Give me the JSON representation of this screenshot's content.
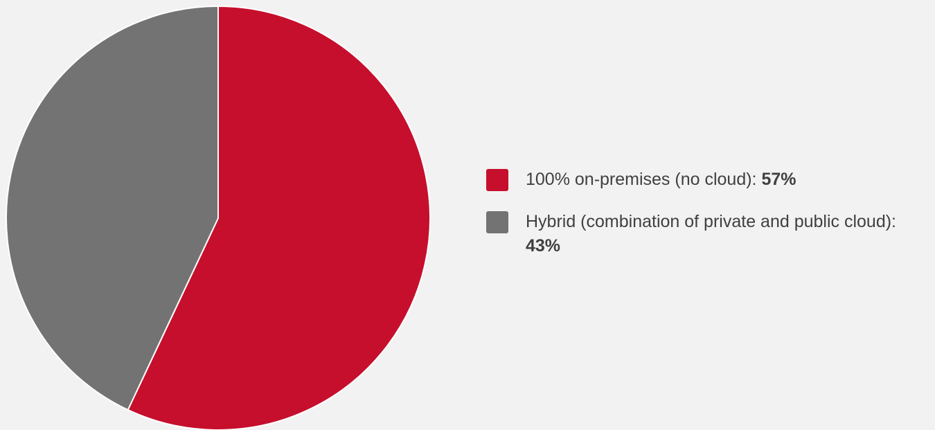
{
  "chart_data": {
    "type": "pie",
    "title": "",
    "slices": [
      {
        "label": "100% on-premises (no cloud): ",
        "value": 57,
        "value_label": "57%",
        "color": "#c60f2d"
      },
      {
        "label": "Hybrid (combination of private and public cloud): ",
        "value": 43,
        "value_label": "43%",
        "color": "#737373"
      }
    ],
    "start_angle": "12 o'clock",
    "direction": "clockwise",
    "legend_position": "right"
  },
  "colors": {
    "background": "#f2f2f2",
    "text": "#404040",
    "slice_border": "#ffffff"
  }
}
